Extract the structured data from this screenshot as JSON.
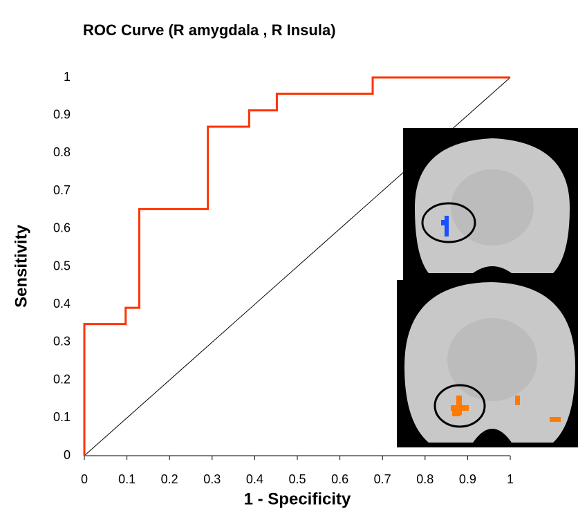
{
  "chart_data": {
    "type": "line",
    "title": "ROC Curve (R amygdala , R Insula)",
    "x_label": "1 - Specificity",
    "y_label": "Sensitivity",
    "series": [
      {
        "color": "#ff3300",
        "x": [
          0,
          0,
          0.097,
          0.097,
          0.129,
          0.129,
          0.29,
          0.29,
          0.387,
          0.387,
          0.452,
          0.452,
          0.677,
          0.677,
          1
        ],
        "values": [
          0,
          0.348,
          0.348,
          0.391,
          0.391,
          0.652,
          0.652,
          0.87,
          0.87,
          0.913,
          0.913,
          0.957,
          0.957,
          1,
          1
        ]
      },
      {
        "color": "#000000",
        "x": [
          0,
          1
        ],
        "values": [
          0,
          1
        ]
      }
    ],
    "xlim": [
      0,
      1
    ],
    "ylim": [
      0,
      1
    ],
    "xticks": [
      0,
      0.1,
      0.2,
      0.3,
      0.4,
      0.5,
      0.6,
      0.7,
      0.8,
      0.9,
      1
    ],
    "yticks": [
      0,
      0.1,
      0.2,
      0.3,
      0.4,
      0.5,
      0.6,
      0.7,
      0.8,
      0.9,
      1
    ]
  }
}
